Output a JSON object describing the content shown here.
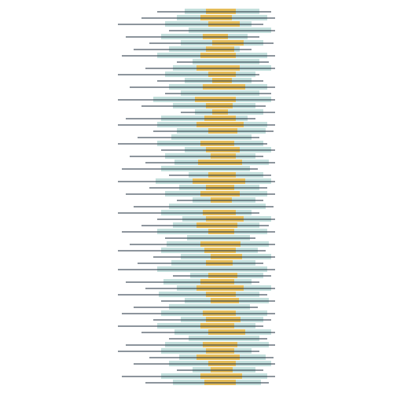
{
  "chart_data": {
    "type": "bar",
    "orientation": "horizontal",
    "tick_labels": false,
    "xlim": [
      0,
      500
    ],
    "categories": [
      null,
      null,
      null,
      null,
      null,
      null,
      null,
      null,
      null,
      null,
      null,
      null,
      null,
      null,
      null,
      null,
      null,
      null,
      null,
      null,
      null,
      null,
      null,
      null,
      null,
      null,
      null,
      null,
      null,
      null,
      null,
      null,
      null,
      null,
      null,
      null,
      null,
      null,
      null,
      null,
      null,
      null,
      null,
      null,
      null,
      null,
      null,
      null,
      null,
      null,
      null,
      null,
      null,
      null,
      null,
      null,
      null,
      null,
      null,
      null
    ],
    "series": [
      {
        "type": "bar",
        "color": "#bcdcd8",
        "values": [
          [
            235,
            330
          ],
          [
            225,
            340
          ],
          [
            210,
            320
          ],
          [
            240,
            345
          ],
          [
            205,
            315
          ],
          [
            230,
            335
          ],
          [
            215,
            305
          ],
          [
            200,
            340
          ],
          [
            245,
            330
          ],
          [
            220,
            345
          ],
          [
            210,
            325
          ],
          [
            235,
            320
          ],
          [
            215,
            340
          ],
          [
            230,
            330
          ],
          [
            195,
            345
          ],
          [
            220,
            325
          ],
          [
            248,
            335
          ],
          [
            205,
            315
          ],
          [
            200,
            340
          ],
          [
            225,
            338
          ],
          [
            218,
            320
          ],
          [
            200,
            335
          ],
          [
            235,
            345
          ],
          [
            210,
            325
          ],
          [
            222,
            342
          ],
          [
            205,
            318
          ],
          [
            240,
            335
          ],
          [
            198,
            345
          ],
          [
            228,
            330
          ],
          [
            210,
            340
          ],
          [
            245,
            325
          ],
          [
            215,
            338
          ],
          [
            205,
            320
          ],
          [
            232,
            345
          ],
          [
            220,
            330
          ],
          [
            200,
            340
          ],
          [
            238,
            318
          ],
          [
            212,
            342
          ],
          [
            205,
            328
          ],
          [
            230,
            345
          ],
          [
            218,
            325
          ],
          [
            200,
            340
          ],
          [
            242,
            335
          ],
          [
            208,
            320
          ],
          [
            225,
            345
          ],
          [
            202,
            330
          ],
          [
            235,
            342
          ],
          [
            215,
            318
          ],
          [
            205,
            340
          ],
          [
            230,
            335
          ],
          [
            200,
            325
          ],
          [
            222,
            345
          ],
          [
            240,
            330
          ],
          [
            210,
            342
          ],
          [
            205,
            320
          ],
          [
            228,
            338
          ],
          [
            215,
            345
          ],
          [
            245,
            325
          ],
          [
            205,
            340
          ],
          [
            220,
            332
          ]
        ]
      },
      {
        "type": "bar",
        "color": "#e8b84a",
        "values": [
          [
            262,
            300
          ],
          [
            255,
            295
          ],
          [
            265,
            305
          ],
          null,
          [
            258,
            290
          ],
          [
            270,
            310
          ],
          [
            262,
            298
          ],
          [
            255,
            300
          ],
          null,
          [
            250,
            305
          ],
          [
            265,
            300
          ],
          [
            270,
            295
          ],
          [
            258,
            312
          ],
          null,
          [
            248,
            300
          ],
          [
            262,
            296
          ],
          [
            270,
            290
          ],
          [
            260,
            300
          ],
          [
            250,
            310
          ],
          [
            265,
            302
          ],
          null,
          [
            255,
            298
          ],
          [
            262,
            305
          ],
          [
            268,
            300
          ],
          [
            252,
            308
          ],
          null,
          [
            265,
            300
          ],
          [
            245,
            312
          ],
          [
            262,
            298
          ],
          [
            255,
            305
          ],
          [
            268,
            295
          ],
          null,
          [
            258,
            300
          ],
          [
            262,
            310
          ],
          [
            250,
            302
          ],
          [
            265,
            298
          ],
          null,
          [
            255,
            306
          ],
          [
            260,
            300
          ],
          [
            268,
            308
          ],
          [
            262,
            296
          ],
          null,
          [
            265,
            302
          ],
          [
            255,
            298
          ],
          [
            250,
            310
          ],
          [
            262,
            300
          ],
          [
            268,
            304
          ],
          null,
          [
            258,
            300
          ],
          [
            262,
            306
          ],
          [
            255,
            298
          ],
          [
            265,
            312
          ],
          null,
          [
            258,
            302
          ],
          [
            262,
            298
          ],
          [
            250,
            305
          ],
          [
            265,
            300
          ],
          [
            268,
            296
          ],
          [
            255,
            308
          ],
          [
            260,
            300
          ]
        ]
      },
      {
        "type": "rule",
        "color": "#1b2a3a",
        "values": [
          [
            200,
            345
          ],
          [
            180,
            350
          ],
          [
            150,
            335
          ],
          [
            215,
            350
          ],
          [
            160,
            330
          ],
          [
            190,
            348
          ],
          [
            170,
            320
          ],
          [
            155,
            350
          ],
          [
            225,
            342
          ],
          [
            185,
            350
          ],
          [
            150,
            330
          ],
          [
            200,
            335
          ],
          [
            165,
            350
          ],
          [
            210,
            345
          ],
          [
            150,
            350
          ],
          [
            180,
            338
          ],
          [
            230,
            350
          ],
          [
            160,
            325
          ],
          [
            150,
            350
          ],
          [
            195,
            348
          ],
          [
            175,
            330
          ],
          [
            150,
            340
          ],
          [
            205,
            350
          ],
          [
            165,
            335
          ],
          [
            185,
            350
          ],
          [
            155,
            328
          ],
          [
            215,
            345
          ],
          [
            150,
            350
          ],
          [
            190,
            340
          ],
          [
            160,
            350
          ],
          [
            225,
            335
          ],
          [
            170,
            348
          ],
          [
            150,
            330
          ],
          [
            200,
            350
          ],
          [
            180,
            342
          ],
          [
            155,
            350
          ],
          [
            210,
            325
          ],
          [
            165,
            350
          ],
          [
            150,
            338
          ],
          [
            195,
            350
          ],
          [
            175,
            335
          ],
          [
            150,
            350
          ],
          [
            220,
            345
          ],
          [
            160,
            330
          ],
          [
            185,
            350
          ],
          [
            150,
            340
          ],
          [
            205,
            350
          ],
          [
            170,
            328
          ],
          [
            155,
            350
          ],
          [
            195,
            345
          ],
          [
            150,
            335
          ],
          [
            180,
            350
          ],
          [
            215,
            340
          ],
          [
            160,
            350
          ],
          [
            150,
            330
          ],
          [
            190,
            348
          ],
          [
            170,
            350
          ],
          [
            225,
            335
          ],
          [
            155,
            350
          ],
          [
            185,
            342
          ]
        ]
      }
    ]
  }
}
